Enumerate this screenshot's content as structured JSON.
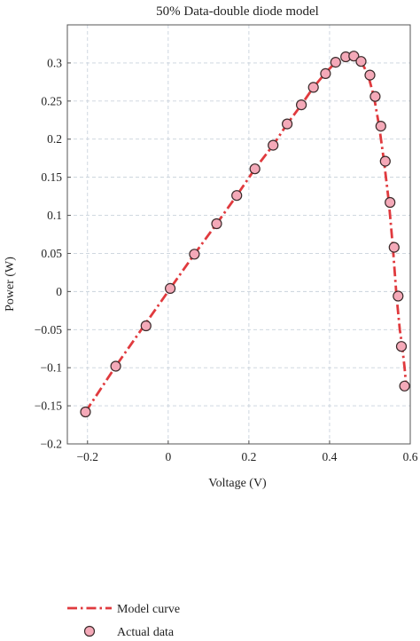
{
  "chart_data": {
    "type": "line",
    "title": "50% Data-double diode model",
    "xlabel": "Voltage (V)",
    "ylabel": "Power (W)",
    "xlim": [
      -0.25,
      0.6
    ],
    "ylim": [
      -0.2,
      0.35
    ],
    "xticks": [
      -0.2,
      0,
      0.2,
      0.4,
      0.6
    ],
    "xtick_labels": [
      "−0.2",
      "0",
      "0.2",
      "0.4",
      "0.6"
    ],
    "yticks": [
      -0.2,
      -0.15,
      -0.1,
      -0.05,
      0,
      0.05,
      0.1,
      0.15,
      0.2,
      0.25,
      0.3
    ],
    "ytick_labels": [
      "−0.2",
      "−0.15",
      "−0.1",
      "−0.05",
      "0",
      "0.05",
      "0.1",
      "0.15",
      "0.2",
      "0.25",
      "0.3"
    ],
    "grid": true,
    "legend_position": "bottom-left",
    "colors": {
      "model_curve": "#e03a3e",
      "marker_fill": "#f4a9b8",
      "marker_edge": "#3a2a2a"
    },
    "series": [
      {
        "name": "Model curve",
        "style": "dash-dot",
        "x": [
          -0.205,
          -0.13,
          -0.06,
          0.005,
          0.065,
          0.12,
          0.17,
          0.215,
          0.26,
          0.295,
          0.33,
          0.36,
          0.39,
          0.415,
          0.44,
          0.46,
          0.478,
          0.495,
          0.51,
          0.523,
          0.535,
          0.547,
          0.557,
          0.566,
          0.574,
          0.58,
          0.586,
          0.59
        ],
        "y": [
          -0.158,
          -0.098,
          -0.045,
          0.004,
          0.049,
          0.089,
          0.126,
          0.161,
          0.192,
          0.22,
          0.245,
          0.268,
          0.287,
          0.301,
          0.308,
          0.309,
          0.302,
          0.285,
          0.256,
          0.217,
          0.171,
          0.117,
          0.058,
          -0.006,
          -0.05,
          -0.072,
          -0.1,
          -0.124
        ]
      },
      {
        "name": "Actual data",
        "style": "markers",
        "x": [
          -0.205,
          -0.13,
          -0.055,
          0.005,
          0.065,
          0.12,
          0.17,
          0.215,
          0.26,
          0.295,
          0.33,
          0.36,
          0.39,
          0.415,
          0.44,
          0.46,
          0.478,
          0.5,
          0.513,
          0.527,
          0.538,
          0.55,
          0.56,
          0.57,
          0.578,
          0.586
        ],
        "y": [
          -0.158,
          -0.098,
          -0.045,
          0.004,
          0.049,
          0.089,
          0.126,
          0.161,
          0.192,
          0.22,
          0.245,
          0.268,
          0.286,
          0.301,
          0.308,
          0.309,
          0.302,
          0.284,
          0.256,
          0.217,
          0.171,
          0.117,
          0.058,
          -0.006,
          -0.072,
          -0.124
        ]
      }
    ]
  }
}
